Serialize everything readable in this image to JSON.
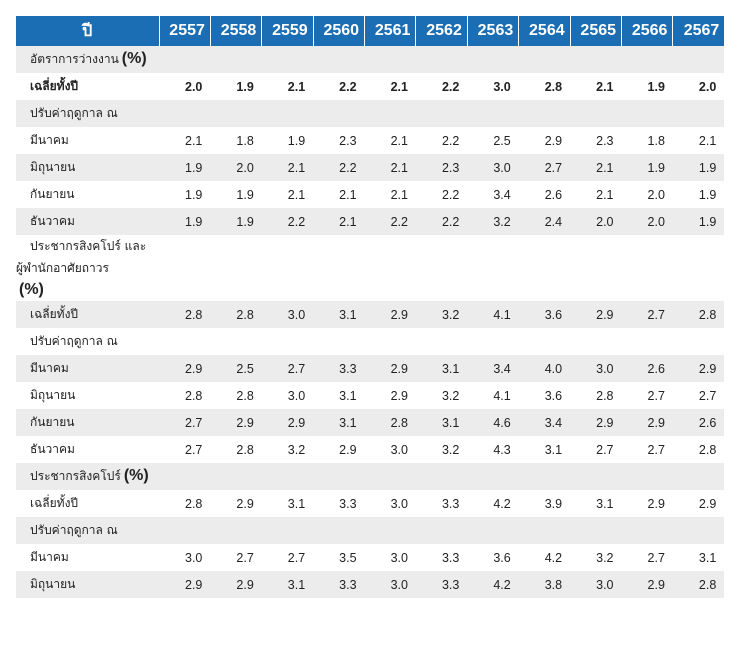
{
  "header": {
    "first_col": "ปี",
    "years": [
      "2557",
      "2558",
      "2559",
      "2560",
      "2561",
      "2562",
      "2563",
      "2564",
      "2565",
      "2566",
      "2567"
    ]
  },
  "sections": [
    {
      "title": "อัตราการว่างงาน",
      "pct": "(%)",
      "average_label": "เฉลี่ยทั้งปี",
      "average": [
        "2.0",
        "1.9",
        "2.1",
        "2.2",
        "2.1",
        "2.2",
        "3.0",
        "2.8",
        "2.1",
        "1.9",
        "2.0"
      ],
      "adjusted_label": "ปรับค่าฤดูกาล ณ",
      "months": [
        {
          "label": "มีนาคม",
          "values": [
            "2.1",
            "1.8",
            "1.9",
            "2.3",
            "2.1",
            "2.2",
            "2.5",
            "2.9",
            "2.3",
            "1.8",
            "2.1"
          ]
        },
        {
          "label": "มิถุนายน",
          "values": [
            "1.9",
            "2.0",
            "2.1",
            "2.2",
            "2.1",
            "2.3",
            "3.0",
            "2.7",
            "2.1",
            "1.9",
            "1.9"
          ]
        },
        {
          "label": "กันยายน",
          "values": [
            "1.9",
            "1.9",
            "2.1",
            "2.1",
            "2.1",
            "2.2",
            "3.4",
            "2.6",
            "2.1",
            "2.0",
            "1.9"
          ]
        },
        {
          "label": "ธันวาคม",
          "values": [
            "1.9",
            "1.9",
            "2.2",
            "2.1",
            "2.2",
            "2.2",
            "3.2",
            "2.4",
            "2.0",
            "2.0",
            "1.9"
          ]
        }
      ]
    },
    {
      "title_line1": "ประชากรสิงคโปร์ และ",
      "title_line2": "ผู้พำนักอาศัยถาวร",
      "pct": "(%)",
      "average_label": "เฉลี่ยทั้งปี",
      "average": [
        "2.8",
        "2.8",
        "3.0",
        "3.1",
        "2.9",
        "3.2",
        "4.1",
        "3.6",
        "2.9",
        "2.7",
        "2.8"
      ],
      "adjusted_label": "ปรับค่าฤดูกาล ณ",
      "months": [
        {
          "label": "มีนาคม",
          "values": [
            "2.9",
            "2.5",
            "2.7",
            "3.3",
            "2.9",
            "3.1",
            "3.4",
            "4.0",
            "3.0",
            "2.6",
            "2.9"
          ]
        },
        {
          "label": "มิถุนายน",
          "values": [
            "2.8",
            "2.8",
            "3.0",
            "3.1",
            "2.9",
            "3.2",
            "4.1",
            "3.6",
            "2.8",
            "2.7",
            "2.7"
          ]
        },
        {
          "label": "กันยายน",
          "values": [
            "2.7",
            "2.9",
            "2.9",
            "3.1",
            "2.8",
            "3.1",
            "4.6",
            "3.4",
            "2.9",
            "2.9",
            "2.6"
          ]
        },
        {
          "label": "ธันวาคม",
          "values": [
            "2.7",
            "2.8",
            "3.2",
            "2.9",
            "3.0",
            "3.2",
            "4.3",
            "3.1",
            "2.7",
            "2.7",
            "2.8"
          ]
        }
      ]
    },
    {
      "title": "ประชากรสิงคโปร์",
      "pct": "(%)",
      "average_label": "เฉลี่ยทั้งปี",
      "average": [
        "2.8",
        "2.9",
        "3.1",
        "3.3",
        "3.0",
        "3.3",
        "4.2",
        "3.9",
        "3.1",
        "2.9",
        "2.9"
      ],
      "adjusted_label": "ปรับค่าฤดูกาล ณ",
      "months": [
        {
          "label": "มีนาคม",
          "values": [
            "3.0",
            "2.7",
            "2.7",
            "3.5",
            "3.0",
            "3.3",
            "3.6",
            "4.2",
            "3.2",
            "2.7",
            "3.1"
          ]
        },
        {
          "label": "มิถุนายน",
          "values": [
            "2.9",
            "2.9",
            "3.1",
            "3.3",
            "3.0",
            "3.3",
            "4.2",
            "3.8",
            "3.0",
            "2.9",
            "2.8"
          ]
        }
      ]
    }
  ]
}
